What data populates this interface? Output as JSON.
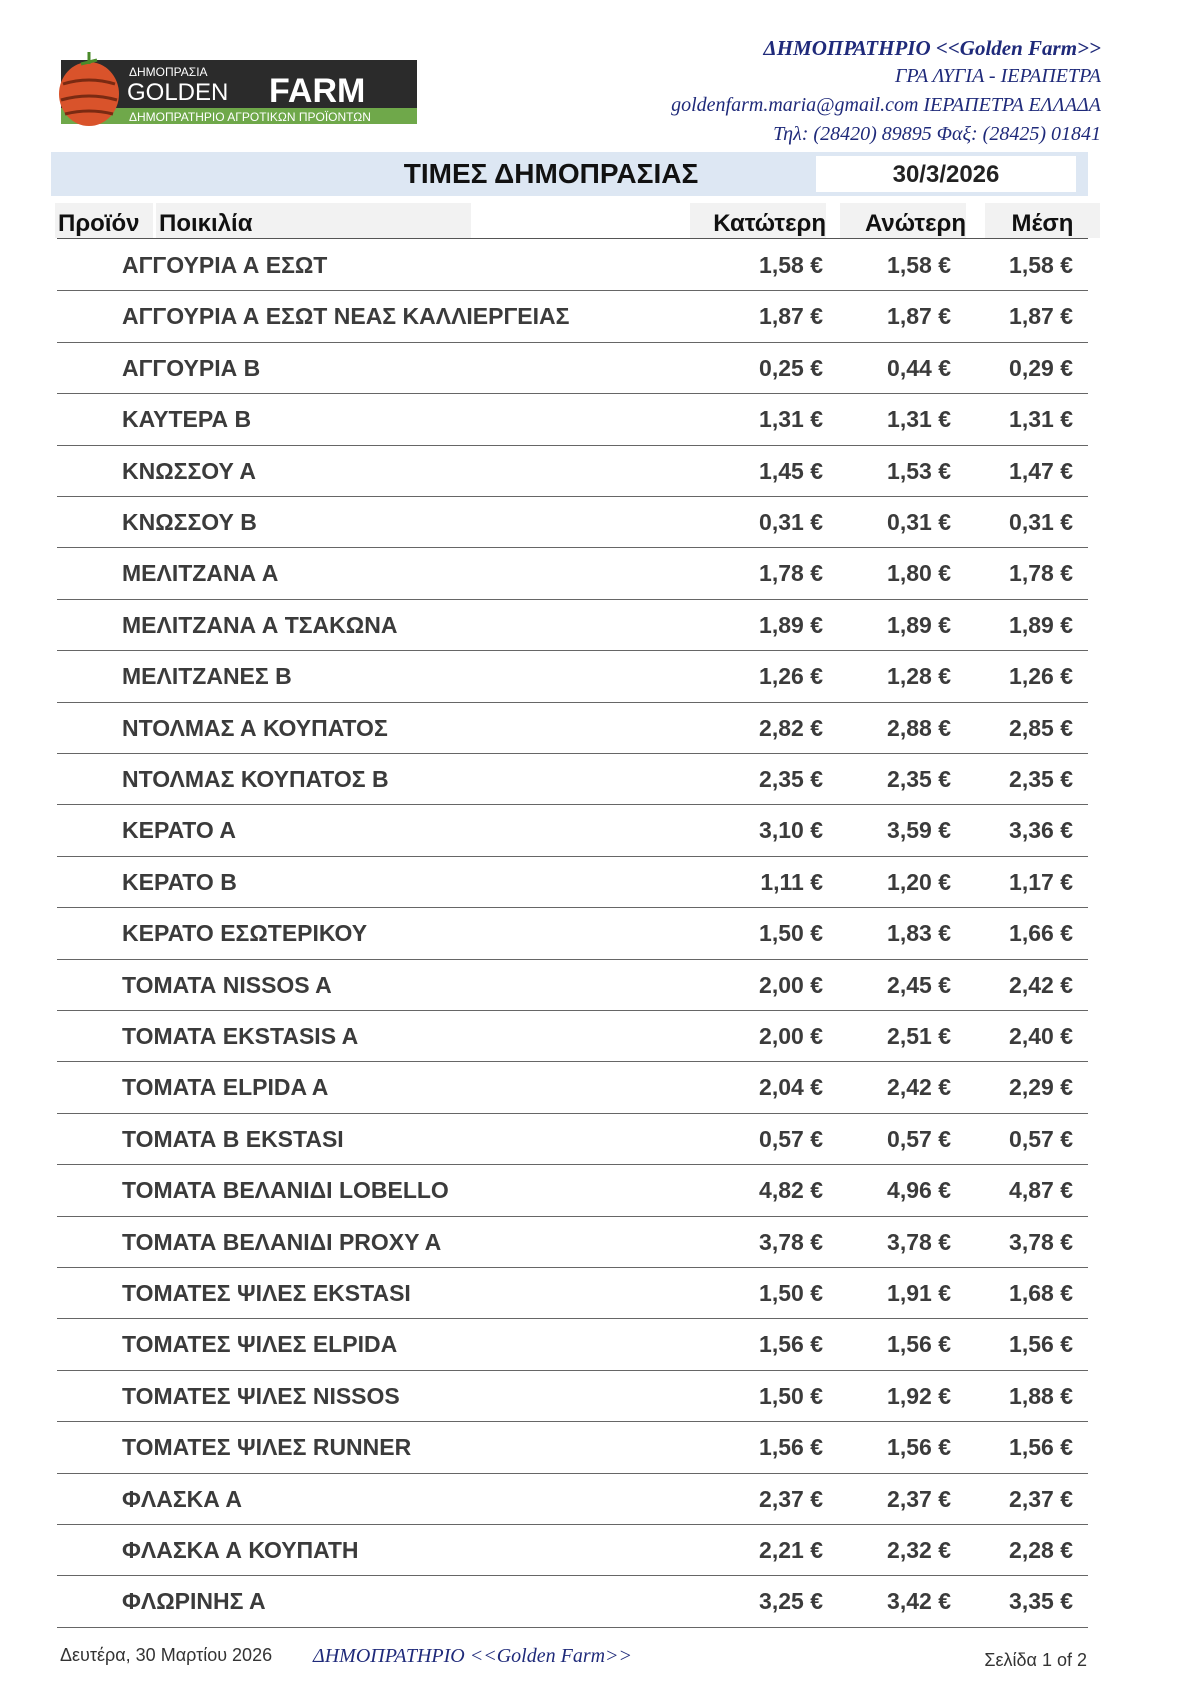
{
  "logo": {
    "top": "ΔΗΜΟΠΡΑΣΙΑ",
    "brand1": "GOLDEN",
    "brand2": "FARM",
    "tagline": "ΔΗΜΟΠΡΑΤΗΡΙΟ ΑΓΡΟΤΙΚΩΝ ΠΡΟΪΟΝΤΩΝ"
  },
  "header": {
    "name": "ΔΗΜΟΠΡΑΤΗΡΙΟ <<Golden Farm>>",
    "address": "ΓΡΑ ΛΥΓΙΑ - ΙΕΡΑΠΕΤΡΑ",
    "email_line": "goldenfarm.maria@gmail.com ΙΕΡΑΠΕΤΡΑ ΕΛΛΑΔΑ",
    "phone_line": "Τηλ: (28420)  89895  Φαξ: (28425) 01841"
  },
  "title": "ΤΙΜΕΣ ΔΗΜΟΠΡΑΣΙΑΣ",
  "date": "30/3/2026",
  "columns": {
    "product": "Προϊόν",
    "variety": "Ποικιλία",
    "low": "Κατώτερη",
    "high": "Ανώτερη",
    "avg": "Μέση"
  },
  "rows": [
    [
      "ΑΓΓΟΥΡΙΑ Α ΕΣΩΤ",
      "1,58 €",
      "1,58 €",
      "1,58 €"
    ],
    [
      "ΑΓΓΟΥΡΙΑ Α ΕΣΩΤ ΝΕΑΣ ΚΑΛΛΙΕΡΓΕΙΑΣ",
      "1,87 €",
      "1,87 €",
      "1,87 €"
    ],
    [
      "ΑΓΓΟΥΡΙΑ Β",
      "0,25 €",
      "0,44 €",
      "0,29 €"
    ],
    [
      "ΚΑΥΤΕΡΑ Β",
      "1,31 €",
      "1,31 €",
      "1,31 €"
    ],
    [
      "ΚΝΩΣΣΟΥ Α",
      "1,45 €",
      "1,53 €",
      "1,47 €"
    ],
    [
      "ΚΝΩΣΣΟΥ Β",
      "0,31 €",
      "0,31 €",
      "0,31 €"
    ],
    [
      "ΜΕΛΙΤΖΑΝΑ Α",
      "1,78 €",
      "1,80 €",
      "1,78 €"
    ],
    [
      "ΜΕΛΙΤΖΑΝΑ Α ΤΣΑΚΩΝΑ",
      "1,89 €",
      "1,89 €",
      "1,89 €"
    ],
    [
      "ΜΕΛΙΤΖΑΝΕΣ Β",
      "1,26 €",
      "1,28 €",
      "1,26 €"
    ],
    [
      "ΝΤΟΛΜΑΣ Α ΚΟΥΠΑΤΟΣ",
      "2,82 €",
      "2,88 €",
      "2,85 €"
    ],
    [
      "ΝΤΟΛΜΑΣ ΚΟΥΠΑΤΟΣ Β",
      "2,35 €",
      "2,35 €",
      "2,35 €"
    ],
    [
      "ΚΕΡΑΤΟ Α",
      "3,10 €",
      "3,59 €",
      "3,36 €"
    ],
    [
      "ΚΕΡΑΤΟ Β",
      "1,11 €",
      "1,20 €",
      "1,17 €"
    ],
    [
      "ΚΕΡΑΤΟ ΕΣΩΤΕΡΙΚΟΥ",
      "1,50 €",
      "1,83 €",
      "1,66 €"
    ],
    [
      "ΤΟΜΑΤΑ NISSOS A",
      "2,00 €",
      "2,45 €",
      "2,42 €"
    ],
    [
      "ΤΟΜΑΤΑ EKSTASIS A",
      "2,00 €",
      "2,51 €",
      "2,40 €"
    ],
    [
      "ΤΟΜΑΤΑ ELPIDA A",
      "2,04 €",
      "2,42 €",
      "2,29 €"
    ],
    [
      "ΤΟΜΑΤΑ Β EKSTASI",
      "0,57 €",
      "0,57 €",
      "0,57 €"
    ],
    [
      "ΤΟΜΑΤΑ ΒΕΛΑΝΙΔΙ LOBELLO",
      "4,82 €",
      "4,96 €",
      "4,87 €"
    ],
    [
      "ΤΟΜΑΤΑ ΒΕΛΑΝΙΔΙ PROXY A",
      "3,78 €",
      "3,78 €",
      "3,78 €"
    ],
    [
      "ΤΟΜΑΤΕΣ ΨΙΛΕΣ EKSTASI",
      "1,50 €",
      "1,91 €",
      "1,68 €"
    ],
    [
      "ΤΟΜΑΤΕΣ ΨΙΛΕΣ ELPIDA",
      "1,56 €",
      "1,56 €",
      "1,56 €"
    ],
    [
      "ΤΟΜΑΤΕΣ ΨΙΛΕΣ NISSOS",
      "1,50 €",
      "1,92 €",
      "1,88 €"
    ],
    [
      "ΤΟΜΑΤΕΣ ΨΙΛΕΣ RUNNER",
      "1,56 €",
      "1,56 €",
      "1,56 €"
    ],
    [
      "ΦΛΑΣΚΑ Α",
      "2,37 €",
      "2,37 €",
      "2,37 €"
    ],
    [
      "ΦΛΑΣΚΑ Α ΚΟΥΠΑΤΗ",
      "2,21 €",
      "2,32 €",
      "2,28 €"
    ],
    [
      "ΦΛΩΡΙΝΗΣ Α",
      "3,25 €",
      "3,42 €",
      "3,35 €"
    ]
  ],
  "footer": {
    "date": "Δευτέρα, 30 Μαρτίου 2026",
    "name": "ΔΗΜΟΠΡΑΤΗΡΙΟ <<Golden Farm>>",
    "page": "Σελίδα 1 of 2"
  },
  "colors": {
    "header_text": "#1f2a7a",
    "title_band": "#dde7f3",
    "logo_green": "#6fa84a",
    "logo_dark": "#2b2b2b",
    "tomato": "#d9532b"
  }
}
